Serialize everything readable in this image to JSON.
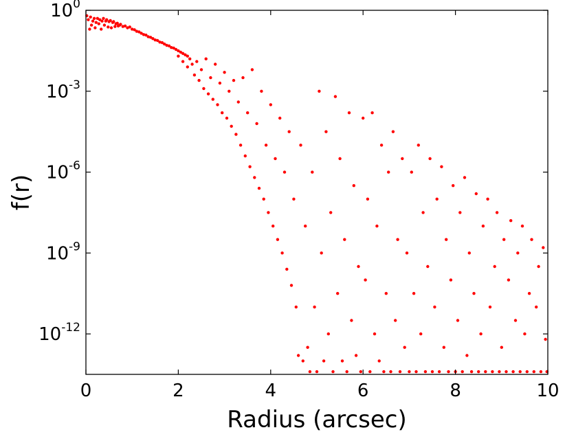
{
  "chart_data": {
    "type": "scatter",
    "xlabel": "Radius (arcsec)",
    "ylabel": "f(r)",
    "xlim": [
      0,
      10
    ],
    "ylim": [
      -13.5,
      0
    ],
    "y_scale": "log10",
    "grid": false,
    "color": "#ff0000",
    "x_ticks": [
      {
        "value": 0,
        "label": "0"
      },
      {
        "value": 2,
        "label": "2"
      },
      {
        "value": 4,
        "label": "4"
      },
      {
        "value": 6,
        "label": "6"
      },
      {
        "value": 8,
        "label": "8"
      },
      {
        "value": 10,
        "label": "10"
      }
    ],
    "y_ticks": [
      {
        "exp": 0,
        "base": "10",
        "sup": "0"
      },
      {
        "exp": -3,
        "base": "10",
        "sup": "-3"
      },
      {
        "exp": -6,
        "base": "10",
        "sup": "-6"
      },
      {
        "exp": -9,
        "base": "10",
        "sup": "-9"
      },
      {
        "exp": -12,
        "base": "10",
        "sup": "-12"
      }
    ],
    "series": [
      {
        "points": [
          [
            0.02,
            -0.2
          ],
          [
            0.05,
            -0.35
          ],
          [
            0.08,
            -0.7
          ],
          [
            0.1,
            -0.25
          ],
          [
            0.12,
            -0.55
          ],
          [
            0.15,
            -0.4
          ],
          [
            0.18,
            -0.3
          ],
          [
            0.2,
            -0.65
          ],
          [
            0.22,
            -0.45
          ],
          [
            0.25,
            -0.3
          ],
          [
            0.28,
            -0.5
          ],
          [
            0.3,
            -0.35
          ],
          [
            0.33,
            -0.7
          ],
          [
            0.35,
            -0.4
          ],
          [
            0.38,
            -0.3
          ],
          [
            0.4,
            -0.55
          ],
          [
            0.43,
            -0.4
          ],
          [
            0.45,
            -0.35
          ],
          [
            0.48,
            -0.62
          ],
          [
            0.5,
            -0.42
          ],
          [
            0.53,
            -0.38
          ],
          [
            0.55,
            -0.65
          ],
          [
            0.58,
            -0.45
          ],
          [
            0.6,
            -0.42
          ],
          [
            0.63,
            -0.6
          ],
          [
            0.65,
            -0.5
          ],
          [
            0.68,
            -0.48
          ],
          [
            0.7,
            -0.58
          ],
          [
            0.73,
            -0.55
          ],
          [
            0.75,
            -0.52
          ],
          [
            0.8,
            -0.6
          ],
          [
            0.85,
            -0.58
          ],
          [
            0.9,
            -0.65
          ],
          [
            0.95,
            -0.62
          ],
          [
            1.0,
            -0.7
          ],
          [
            1.05,
            -0.72
          ],
          [
            1.1,
            -0.78
          ],
          [
            1.15,
            -0.8
          ],
          [
            1.2,
            -0.85
          ],
          [
            1.25,
            -0.9
          ],
          [
            1.3,
            -0.92
          ],
          [
            1.35,
            -0.98
          ],
          [
            1.4,
            -1.0
          ],
          [
            1.45,
            -1.05
          ],
          [
            1.5,
            -1.1
          ],
          [
            1.55,
            -1.12
          ],
          [
            1.6,
            -1.18
          ],
          [
            1.65,
            -1.2
          ],
          [
            1.7,
            -1.25
          ],
          [
            1.75,
            -1.3
          ],
          [
            1.8,
            -1.32
          ],
          [
            1.85,
            -1.38
          ],
          [
            1.9,
            -1.4
          ],
          [
            1.95,
            -1.45
          ],
          [
            2.0,
            -1.5
          ],
          [
            2.05,
            -1.55
          ],
          [
            2.1,
            -1.6
          ],
          [
            2.15,
            -1.65
          ],
          [
            2.2,
            -1.7
          ],
          [
            2.25,
            -1.8
          ],
          [
            2.0,
            -1.7
          ],
          [
            2.1,
            -1.9
          ],
          [
            2.2,
            -2.1
          ],
          [
            2.3,
            -2.0
          ],
          [
            2.35,
            -2.4
          ],
          [
            2.4,
            -1.9
          ],
          [
            2.45,
            -2.6
          ],
          [
            2.5,
            -2.2
          ],
          [
            2.55,
            -2.9
          ],
          [
            2.6,
            -1.8
          ],
          [
            2.65,
            -3.1
          ],
          [
            2.7,
            -2.5
          ],
          [
            2.75,
            -3.3
          ],
          [
            2.8,
            -2.0
          ],
          [
            2.85,
            -3.5
          ],
          [
            2.9,
            -2.7
          ],
          [
            2.95,
            -3.8
          ],
          [
            3.0,
            -2.3
          ],
          [
            3.05,
            -4.0
          ],
          [
            3.1,
            -3.0
          ],
          [
            3.15,
            -4.3
          ],
          [
            3.2,
            -2.6
          ],
          [
            3.25,
            -4.6
          ],
          [
            3.3,
            -3.4
          ],
          [
            3.35,
            -5.0
          ],
          [
            3.4,
            -2.5
          ],
          [
            3.45,
            -5.4
          ],
          [
            3.5,
            -3.8
          ],
          [
            3.55,
            -5.8
          ],
          [
            3.6,
            -2.2
          ],
          [
            3.65,
            -6.2
          ],
          [
            3.7,
            -4.2
          ],
          [
            3.75,
            -6.6
          ],
          [
            3.8,
            -3.0
          ],
          [
            3.85,
            -7.0
          ],
          [
            3.9,
            -5.0
          ],
          [
            3.95,
            -7.5
          ],
          [
            4.0,
            -3.5
          ],
          [
            4.05,
            -8.0
          ],
          [
            4.1,
            -5.5
          ],
          [
            4.15,
            -8.5
          ],
          [
            4.2,
            -4.0
          ],
          [
            4.25,
            -9.0
          ],
          [
            4.3,
            -6.0
          ],
          [
            4.35,
            -9.6
          ],
          [
            4.4,
            -4.5
          ],
          [
            4.45,
            -10.2
          ],
          [
            4.5,
            -7.0
          ],
          [
            4.55,
            -11.0
          ],
          [
            4.6,
            -12.8
          ],
          [
            4.65,
            -5.0
          ],
          [
            4.7,
            -13.0
          ],
          [
            4.75,
            -8.0
          ],
          [
            4.8,
            -12.5
          ],
          [
            4.85,
            -13.4
          ],
          [
            4.9,
            -6.0
          ],
          [
            4.95,
            -11.0
          ],
          [
            5.0,
            -13.4
          ],
          [
            5.05,
            -3.0
          ],
          [
            5.1,
            -9.0
          ],
          [
            5.15,
            -13.0
          ],
          [
            5.2,
            -4.5
          ],
          [
            5.25,
            -12.0
          ],
          [
            5.3,
            -7.5
          ],
          [
            5.35,
            -13.4
          ],
          [
            5.4,
            -3.2
          ],
          [
            5.45,
            -10.5
          ],
          [
            5.5,
            -5.5
          ],
          [
            5.55,
            -13.0
          ],
          [
            5.6,
            -8.5
          ],
          [
            5.65,
            -13.4
          ],
          [
            5.7,
            -3.8
          ],
          [
            5.75,
            -11.5
          ],
          [
            5.8,
            -6.5
          ],
          [
            5.85,
            -12.8
          ],
          [
            5.9,
            -9.5
          ],
          [
            5.95,
            -13.4
          ],
          [
            6.0,
            -4.0
          ],
          [
            6.05,
            -10.0
          ],
          [
            6.1,
            -7.0
          ],
          [
            6.15,
            -13.4
          ],
          [
            6.2,
            -3.8
          ],
          [
            6.25,
            -12.0
          ],
          [
            6.3,
            -8.0
          ],
          [
            6.35,
            -13.0
          ],
          [
            6.4,
            -5.0
          ],
          [
            6.45,
            -13.4
          ],
          [
            6.5,
            -10.5
          ],
          [
            6.55,
            -6.0
          ],
          [
            6.6,
            -13.4
          ],
          [
            6.65,
            -4.5
          ],
          [
            6.7,
            -11.5
          ],
          [
            6.75,
            -8.5
          ],
          [
            6.8,
            -13.4
          ],
          [
            6.85,
            -5.5
          ],
          [
            6.9,
            -12.5
          ],
          [
            6.95,
            -9.0
          ],
          [
            7.0,
            -13.4
          ],
          [
            7.05,
            -6.0
          ],
          [
            7.1,
            -10.5
          ],
          [
            7.15,
            -13.4
          ],
          [
            7.2,
            -5.0
          ],
          [
            7.25,
            -12.0
          ],
          [
            7.3,
            -7.5
          ],
          [
            7.35,
            -13.4
          ],
          [
            7.4,
            -9.5
          ],
          [
            7.45,
            -5.5
          ],
          [
            7.5,
            -13.4
          ],
          [
            7.55,
            -11.0
          ],
          [
            7.6,
            -7.0
          ],
          [
            7.65,
            -13.4
          ],
          [
            7.7,
            -5.8
          ],
          [
            7.75,
            -12.5
          ],
          [
            7.8,
            -8.5
          ],
          [
            7.85,
            -13.4
          ],
          [
            7.9,
            -10.0
          ],
          [
            7.95,
            -6.5
          ],
          [
            8.0,
            -13.4
          ],
          [
            8.05,
            -11.5
          ],
          [
            8.1,
            -7.5
          ],
          [
            8.15,
            -13.4
          ],
          [
            8.2,
            -6.2
          ],
          [
            8.25,
            -12.8
          ],
          [
            8.3,
            -9.0
          ],
          [
            8.35,
            -13.4
          ],
          [
            8.4,
            -10.5
          ],
          [
            8.45,
            -6.8
          ],
          [
            8.5,
            -13.4
          ],
          [
            8.55,
            -12.0
          ],
          [
            8.6,
            -8.0
          ],
          [
            8.65,
            -13.4
          ],
          [
            8.7,
            -7.0
          ],
          [
            8.75,
            -11.0
          ],
          [
            8.8,
            -13.4
          ],
          [
            8.85,
            -9.5
          ],
          [
            8.9,
            -7.5
          ],
          [
            8.95,
            -13.4
          ],
          [
            9.0,
            -12.5
          ],
          [
            9.05,
            -8.5
          ],
          [
            9.1,
            -13.4
          ],
          [
            9.15,
            -10.0
          ],
          [
            9.2,
            -7.8
          ],
          [
            9.25,
            -13.4
          ],
          [
            9.3,
            -11.5
          ],
          [
            9.35,
            -9.0
          ],
          [
            9.4,
            -13.4
          ],
          [
            9.45,
            -8.0
          ],
          [
            9.5,
            -12.0
          ],
          [
            9.55,
            -13.4
          ],
          [
            9.6,
            -10.5
          ],
          [
            9.65,
            -8.5
          ],
          [
            9.7,
            -13.4
          ],
          [
            9.75,
            -11.0
          ],
          [
            9.8,
            -9.5
          ],
          [
            9.85,
            -13.4
          ],
          [
            9.9,
            -8.8
          ],
          [
            9.95,
            -12.2
          ],
          [
            9.98,
            -13.4
          ]
        ]
      }
    ]
  }
}
